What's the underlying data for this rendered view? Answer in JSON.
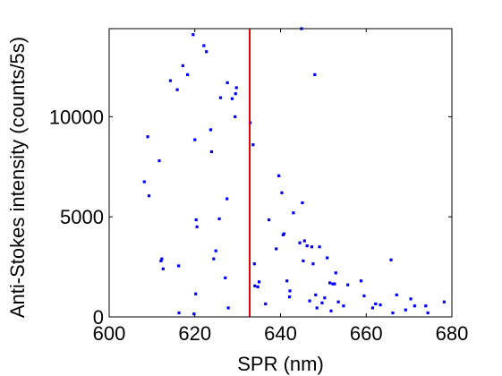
{
  "chart_data": {
    "type": "scatter",
    "title": "",
    "xlabel": "SPR (nm)",
    "ylabel": "Anti-Stokes intensity (counts/5s)",
    "xlim": [
      600,
      680
    ],
    "ylim": [
      0,
      14400
    ],
    "xticks": [
      600,
      620,
      640,
      660,
      680
    ],
    "yticks": [
      0,
      5000,
      10000
    ],
    "xtick_labels": [
      "600",
      "620",
      "640",
      "660",
      "680"
    ],
    "ytick_labels": [
      "0",
      "5000",
      "10000"
    ],
    "grid": false,
    "marker_color": "#0000ff",
    "vline": {
      "x": 632.8,
      "color": "#dd0000"
    },
    "series": [
      {
        "points": [
          [
            608.2,
            6750
          ],
          [
            609,
            9000
          ],
          [
            609.3,
            6050
          ],
          [
            611.7,
            7800
          ],
          [
            612.1,
            2800
          ],
          [
            612.3,
            2900
          ],
          [
            612.6,
            2400
          ],
          [
            614.3,
            11800
          ],
          [
            615.9,
            11350
          ],
          [
            616.2,
            2550
          ],
          [
            616.3,
            200
          ],
          [
            617.2,
            12550
          ],
          [
            618.3,
            12100
          ],
          [
            619.6,
            14100
          ],
          [
            619.8,
            150
          ],
          [
            620,
            8850
          ],
          [
            620.2,
            1150
          ],
          [
            620.3,
            4850
          ],
          [
            620.5,
            4500
          ],
          [
            622.1,
            13550
          ],
          [
            622.7,
            13250
          ],
          [
            623.7,
            9350
          ],
          [
            623.9,
            8250
          ],
          [
            624.4,
            2900
          ],
          [
            624.9,
            3300
          ],
          [
            625.7,
            4900
          ],
          [
            626,
            10950
          ],
          [
            627.1,
            1950
          ],
          [
            627.5,
            5900
          ],
          [
            627.6,
            11700
          ],
          [
            627.8,
            450
          ],
          [
            628.7,
            10900
          ],
          [
            629.4,
            10000
          ],
          [
            629.5,
            11150
          ],
          [
            629.7,
            11450
          ],
          [
            632.9,
            9700
          ],
          [
            633.6,
            8600
          ],
          [
            633.9,
            2650
          ],
          [
            634,
            1550
          ],
          [
            634.7,
            1500
          ],
          [
            635,
            1750
          ],
          [
            636.5,
            650
          ],
          [
            637.3,
            4850
          ],
          [
            639,
            3400
          ],
          [
            639.6,
            7050
          ],
          [
            640.3,
            6200
          ],
          [
            640.6,
            4100
          ],
          [
            640.8,
            4150
          ],
          [
            641.5,
            1800
          ],
          [
            642.1,
            1000
          ],
          [
            642.2,
            1300
          ],
          [
            643,
            5200
          ],
          [
            644.5,
            3700
          ],
          [
            644.9,
            14400
          ],
          [
            645.1,
            5700
          ],
          [
            645.3,
            2800
          ],
          [
            645.6,
            3800
          ],
          [
            646.2,
            3550
          ],
          [
            646.8,
            800
          ],
          [
            647.3,
            3500
          ],
          [
            647.6,
            2650
          ],
          [
            648,
            12100
          ],
          [
            648.2,
            1100
          ],
          [
            648.5,
            450
          ],
          [
            649.1,
            3500
          ],
          [
            649.7,
            700
          ],
          [
            650.3,
            950
          ],
          [
            650.9,
            2950
          ],
          [
            651.5,
            1700
          ],
          [
            651.8,
            300
          ],
          [
            652.2,
            1650
          ],
          [
            652.6,
            1650
          ],
          [
            652.9,
            2200
          ],
          [
            653.5,
            750
          ],
          [
            654.7,
            550
          ],
          [
            655.7,
            1600
          ],
          [
            658.8,
            1800
          ],
          [
            659.5,
            1050
          ],
          [
            661.5,
            450
          ],
          [
            662.2,
            650
          ],
          [
            663.3,
            600
          ],
          [
            665.8,
            2850
          ],
          [
            666.2,
            200
          ],
          [
            667.1,
            1100
          ],
          [
            669.2,
            350
          ],
          [
            670.4,
            900
          ],
          [
            671.3,
            550
          ],
          [
            673.9,
            550
          ],
          [
            674.4,
            200
          ],
          [
            678.2,
            750
          ]
        ]
      }
    ]
  }
}
